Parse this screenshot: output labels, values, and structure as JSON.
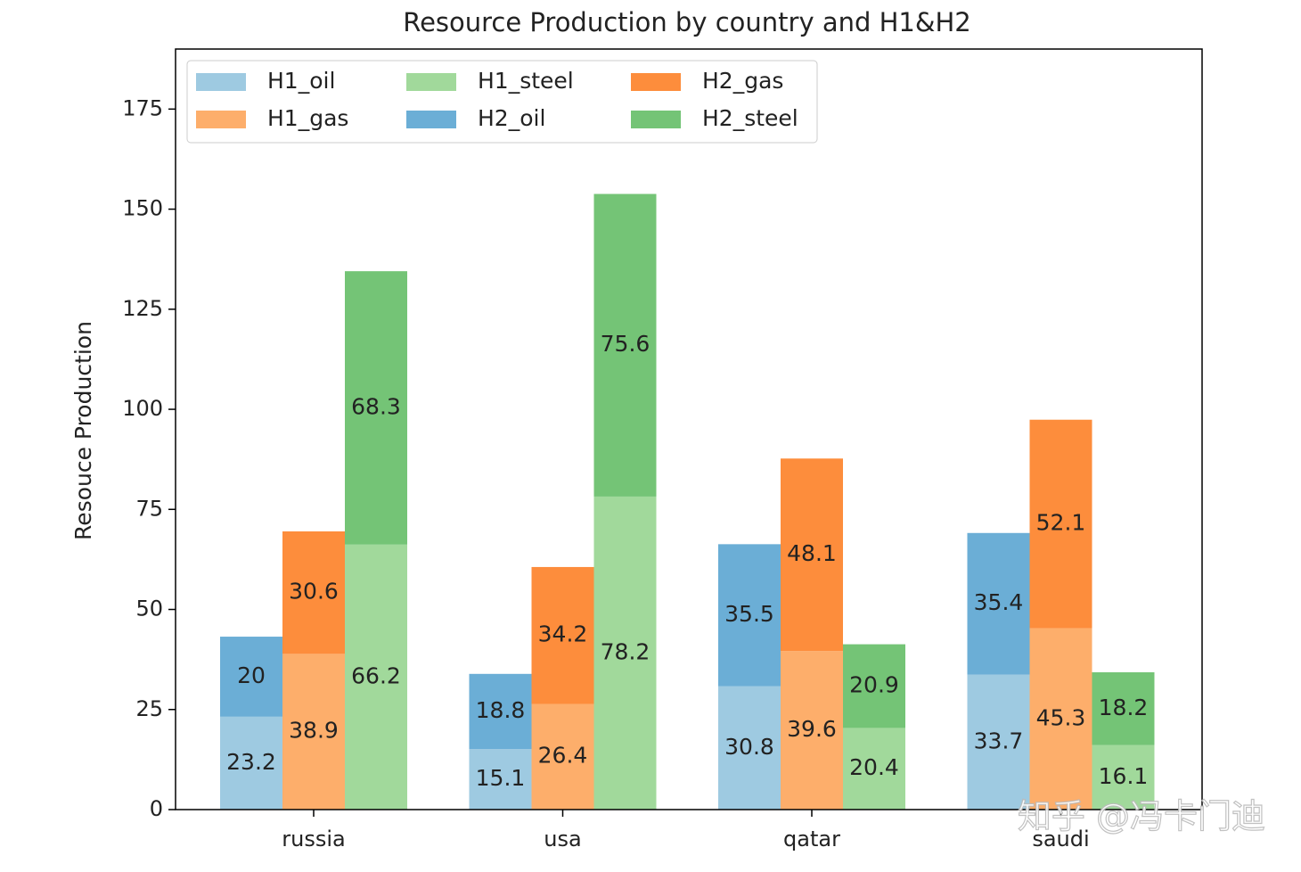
{
  "chart_data": {
    "type": "bar",
    "title": "Resource Production by country and H1&H2",
    "ylabel": "Resouce Production",
    "categories": [
      "russia",
      "usa",
      "qatar",
      "saudi"
    ],
    "series": [
      {
        "name": "H1_oil",
        "color": "#9ecae1",
        "values": [
          23.2,
          15.1,
          30.8,
          33.7
        ]
      },
      {
        "name": "H1_gas",
        "color": "#fdae6b",
        "values": [
          38.9,
          26.4,
          39.6,
          45.3
        ]
      },
      {
        "name": "H1_steel",
        "color": "#a1d99b",
        "values": [
          66.2,
          78.2,
          20.4,
          16.1
        ]
      },
      {
        "name": "H2_oil",
        "color": "#6baed6",
        "values": [
          20,
          18.8,
          35.5,
          35.4
        ]
      },
      {
        "name": "H2_gas",
        "color": "#fd8d3c",
        "values": [
          30.6,
          34.2,
          48.1,
          52.1
        ]
      },
      {
        "name": "H2_steel",
        "color": "#74c476",
        "values": [
          68.3,
          75.6,
          20.9,
          18.2
        ]
      }
    ],
    "ylim": [
      0,
      190
    ],
    "yticks": [
      0,
      25,
      50,
      75,
      100,
      125,
      150,
      175
    ],
    "legend": "upper left",
    "watermark": "知乎 @冯卡门迪"
  }
}
